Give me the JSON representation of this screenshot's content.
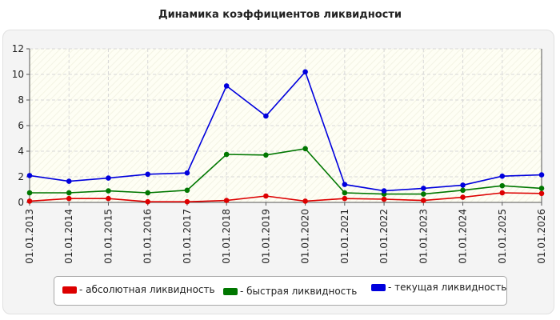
{
  "chart_data": {
    "type": "line",
    "title": "Динамика коэффициентов ликвидности",
    "xlabel": "",
    "ylabel": "",
    "categories": [
      "01.01.2013",
      "01.01.2014",
      "01.01.2015",
      "01.01.2016",
      "01.01.2017",
      "01.01.2018",
      "01.01.2019",
      "01.01.2020",
      "01.01.2021",
      "01.01.2022",
      "01.01.2023",
      "01.01.2024",
      "01.01.2025",
      "01.01.2026"
    ],
    "ylim": [
      0,
      12
    ],
    "yticks": [
      0,
      2,
      4,
      6,
      8,
      10,
      12
    ],
    "grid": true,
    "legend_position": "bottom",
    "series": [
      {
        "name": "- абсолютная ликвидность",
        "color": "#dd0000",
        "values": [
          0.1,
          0.3,
          0.3,
          0.05,
          0.05,
          0.15,
          0.5,
          0.1,
          0.3,
          0.25,
          0.15,
          0.4,
          0.75,
          0.7
        ]
      },
      {
        "name": "- быстрая ликвидность",
        "color": "#007700",
        "values": [
          0.75,
          0.75,
          0.9,
          0.75,
          0.95,
          3.75,
          3.7,
          4.2,
          0.75,
          0.65,
          0.65,
          0.95,
          1.3,
          1.1
        ]
      },
      {
        "name": "- текущая ликвидность",
        "color": "#0000dd",
        "values": [
          2.1,
          1.65,
          1.9,
          2.2,
          2.3,
          9.1,
          6.75,
          10.2,
          1.4,
          0.9,
          1.1,
          1.35,
          2.05,
          2.15
        ]
      }
    ]
  }
}
